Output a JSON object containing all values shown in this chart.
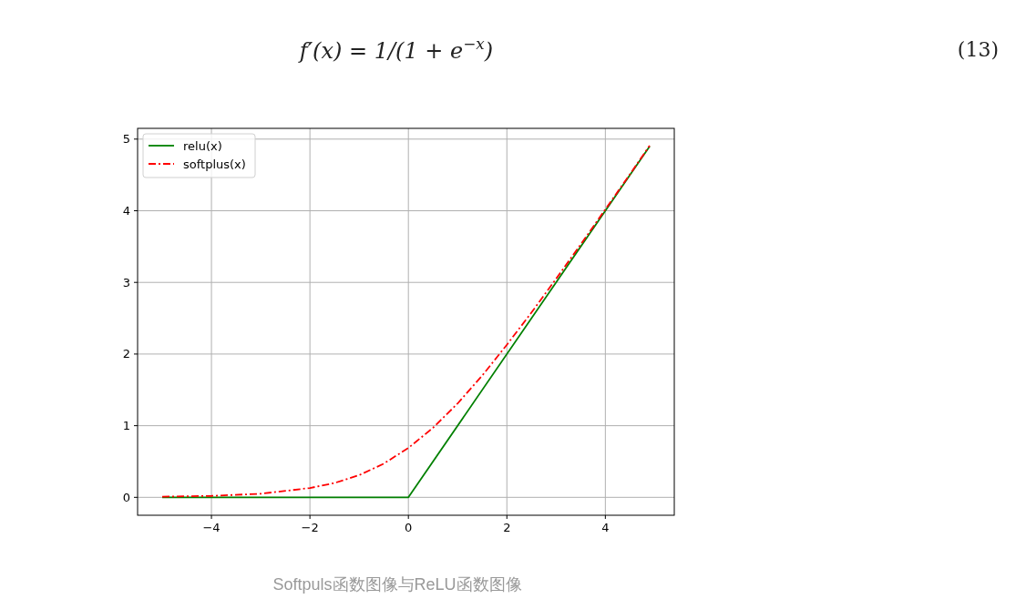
{
  "chart_data": {
    "type": "line",
    "annotations": [
      "f′(x) = 1/(1 + e$^{−x}$)",
      "(13)",
      "Softpuls函数图像与ReLU函数图像"
    ],
    "series": [
      {
        "name": "relu(x)",
        "color": "#008000",
        "line_style": "solid",
        "x": [
          -5,
          0,
          4.9
        ],
        "values": [
          0,
          0,
          4.9
        ]
      },
      {
        "name": "softplus(x)",
        "color": "#ff0000",
        "line_style": "dashed",
        "x": [
          -5,
          -4,
          -3,
          -2,
          -1.5,
          -1,
          -0.5,
          0,
          0.5,
          1,
          1.5,
          2,
          2.5,
          3,
          3.5,
          4,
          4.5,
          4.9
        ],
        "values": [
          0.01,
          0.02,
          0.05,
          0.13,
          0.2,
          0.31,
          0.47,
          0.69,
          0.97,
          1.31,
          1.7,
          2.13,
          2.58,
          3.05,
          3.53,
          4.02,
          4.51,
          4.91
        ]
      }
    ],
    "xlim": [
      -5.5,
      5.4
    ],
    "ylim": [
      -0.25,
      5.15
    ],
    "xticks": [
      {
        "value": -4,
        "label": "−4"
      },
      {
        "value": -2,
        "label": "−2"
      },
      0,
      2,
      4
    ],
    "yticks": [
      0,
      1,
      2,
      3,
      4,
      5
    ],
    "grid": true,
    "legend": "top left"
  }
}
